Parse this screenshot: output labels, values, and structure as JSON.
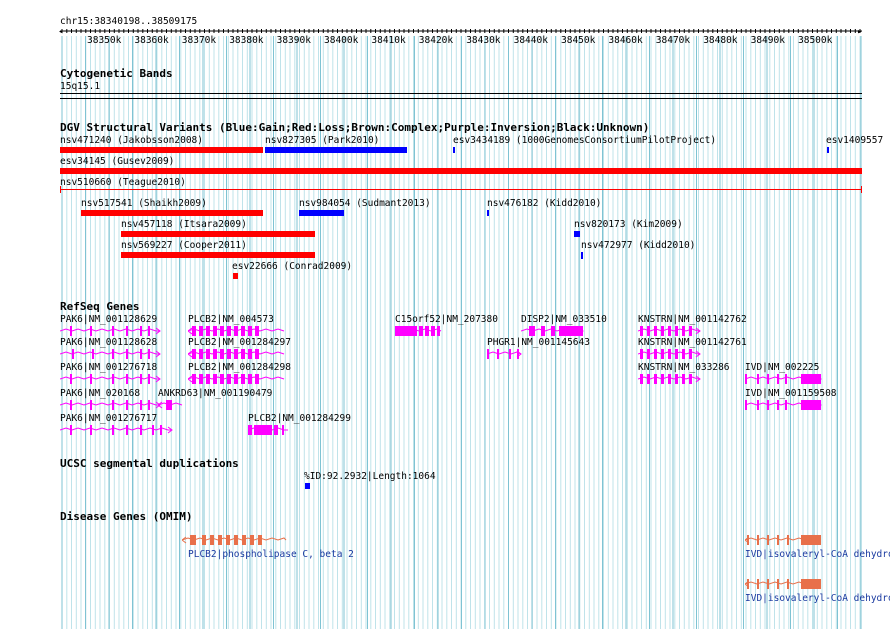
{
  "position": "chr15:38340198..38509175",
  "ruler": {
    "ticks": [
      "38350k",
      "38360k",
      "38370k",
      "38380k",
      "38390k",
      "38400k",
      "38410k",
      "38420k",
      "38430k",
      "38440k",
      "38450k",
      "38460k",
      "38470k",
      "38480k",
      "38490k",
      "38500k"
    ]
  },
  "cytobands": {
    "title": "Cytogenetic Bands",
    "band": "15q15.1"
  },
  "dgv": {
    "title": "DGV Structural Variants (Blue:Gain;Red:Loss;Brown:Complex;Purple:Inversion;Black:Unknown)",
    "colors": {
      "gain": "#0000ff",
      "loss": "#ff0000"
    },
    "features": [
      {
        "label": "nsv471240 (Jakobsson2008)",
        "type": "loss"
      },
      {
        "label": "nsv827305 (Park2010)",
        "type": "gain"
      },
      {
        "label": "esv3434189 (1000GenomesConsortiumPilotProject)",
        "type": "gain"
      },
      {
        "label": "esv1409557",
        "type": "gain"
      },
      {
        "label": "esv34145 (Gusev2009)",
        "type": "loss"
      },
      {
        "label": "nsv510660 (Teague2010)",
        "type": "loss"
      },
      {
        "label": "nsv517541 (Shaikh2009)",
        "type": "loss"
      },
      {
        "label": "nsv984054 (Sudmant2013)",
        "type": "gain"
      },
      {
        "label": "nsv476182 (Kidd2010)",
        "type": "gain"
      },
      {
        "label": "nsv457118 (Itsara2009)",
        "type": "loss"
      },
      {
        "label": "nsv820173 (Kim2009)",
        "type": "gain"
      },
      {
        "label": "nsv569227 (Cooper2011)",
        "type": "loss"
      },
      {
        "label": "nsv472977 (Kidd2010)",
        "type": "gain"
      },
      {
        "label": "esv22666 (Conrad2009)",
        "type": "loss"
      }
    ]
  },
  "refseq": {
    "title": "RefSeq Genes",
    "color": "#ff00ff",
    "genes": [
      "PAK6|NM_001128629",
      "PLCB2|NM_004573",
      "C15orf52|NM_207380",
      "DISP2|NM_033510",
      "KNSTRN|NM_001142762",
      "PAK6|NM_001128628",
      "PLCB2|NM_001284297",
      "PHGR1|NM_001145643",
      "KNSTRN|NM_001142761",
      "PAK6|NM_001276718",
      "PLCB2|NM_001284298",
      "KNSTRN|NM_033286",
      "IVD|NM_002225",
      "PAK6|NM_020168",
      "ANKRD63|NM_001190479",
      "IVD|NM_001159508",
      "PAK6|NM_001276717",
      "PLCB2|NM_001284299"
    ]
  },
  "segdups": {
    "title": "UCSC segmental duplications",
    "label": "%ID:92.2932|Length:1064"
  },
  "omim": {
    "title": "Disease Genes (OMIM)",
    "color": "#e8704a",
    "labels": [
      "PLCB2|phospholipase C, beta 2",
      "IVD|isovaleryl-CoA dehydrogenase",
      "IVD|isovaleryl-CoA dehydrogenase"
    ]
  }
}
